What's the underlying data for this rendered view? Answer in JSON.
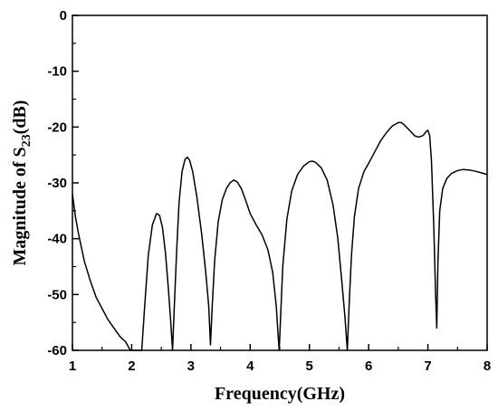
{
  "chart_data": {
    "type": "line",
    "title": "",
    "xlabel": "Frequency(GHz)",
    "ylabel": {
      "prefix": "Magnitude of S",
      "subscript": "23",
      "suffix": "(dB)"
    },
    "xlim": [
      1,
      8
    ],
    "ylim": [
      -60,
      0
    ],
    "x_ticks": [
      1,
      2,
      3,
      4,
      5,
      6,
      7,
      8
    ],
    "y_ticks": [
      0,
      -10,
      -20,
      -30,
      -40,
      -50,
      -60
    ],
    "x_tick_labels": [
      "1",
      "2",
      "3",
      "4",
      "5",
      "6",
      "7",
      "8"
    ],
    "y_tick_labels": [
      "0",
      "-10",
      "-20",
      "-30",
      "-40",
      "-50",
      "-60"
    ],
    "grid": false,
    "legend": "none",
    "line_color": "#000000",
    "series": [
      {
        "x": [
          1.0,
          1.05,
          1.1,
          1.2,
          1.3,
          1.4,
          1.5,
          1.6,
          1.7,
          1.8,
          1.9,
          1.95,
          1.98,
          2.17,
          2.22,
          2.28,
          2.35,
          2.42,
          2.47,
          2.52,
          2.57,
          2.62,
          2.66,
          2.69,
          2.72,
          2.76,
          2.8,
          2.85,
          2.9,
          2.94,
          2.98,
          3.03,
          3.1,
          3.18,
          3.25,
          3.3,
          3.33,
          3.36,
          3.4,
          3.46,
          3.53,
          3.6,
          3.66,
          3.72,
          3.78,
          3.85,
          3.92,
          4.0,
          4.1,
          4.2,
          4.3,
          4.38,
          4.44,
          4.47,
          4.49,
          4.51,
          4.55,
          4.62,
          4.7,
          4.8,
          4.9,
          5.0,
          5.05,
          5.1,
          5.2,
          5.3,
          5.4,
          5.48,
          5.55,
          5.6,
          5.64,
          5.67,
          5.71,
          5.76,
          5.83,
          5.92,
          6.0,
          6.1,
          6.2,
          6.3,
          6.4,
          6.5,
          6.55,
          6.6,
          6.7,
          6.78,
          6.85,
          6.92,
          6.97,
          7.0,
          7.03,
          7.06,
          7.1,
          7.13,
          7.15,
          7.17,
          7.2,
          7.25,
          7.32,
          7.4,
          7.5,
          7.6,
          7.7,
          7.8,
          7.9,
          8.0
        ],
        "y": [
          -32,
          -36,
          -39,
          -44,
          -47.5,
          -50.5,
          -52.5,
          -54.5,
          -56,
          -57.5,
          -58.5,
          -59.5,
          -60,
          -60,
          -52,
          -43,
          -37.5,
          -35.5,
          -35.8,
          -38,
          -42.5,
          -49,
          -55,
          -60,
          -52,
          -42,
          -33.5,
          -28,
          -25.8,
          -25.4,
          -26,
          -28,
          -32.5,
          -39,
          -46,
          -52,
          -59,
          -52,
          -44,
          -37,
          -33,
          -31,
          -30,
          -29.5,
          -29.8,
          -31,
          -33,
          -35.5,
          -37.5,
          -39.3,
          -42,
          -46,
          -52,
          -57,
          -60,
          -55,
          -45,
          -36.5,
          -31.5,
          -28.5,
          -27,
          -26.2,
          -26.1,
          -26.3,
          -27.3,
          -29.5,
          -34,
          -40,
          -48,
          -54,
          -60,
          -52,
          -43,
          -36,
          -31,
          -28,
          -26.5,
          -24.5,
          -22.5,
          -21,
          -19.8,
          -19.2,
          -19.2,
          -19.6,
          -20.7,
          -21.6,
          -21.8,
          -21.5,
          -20.8,
          -20.6,
          -21.5,
          -26,
          -38,
          -50,
          -56,
          -44,
          -35,
          -31,
          -29.2,
          -28.3,
          -27.8,
          -27.6,
          -27.7,
          -27.9,
          -28.2,
          -28.5
        ]
      }
    ]
  }
}
